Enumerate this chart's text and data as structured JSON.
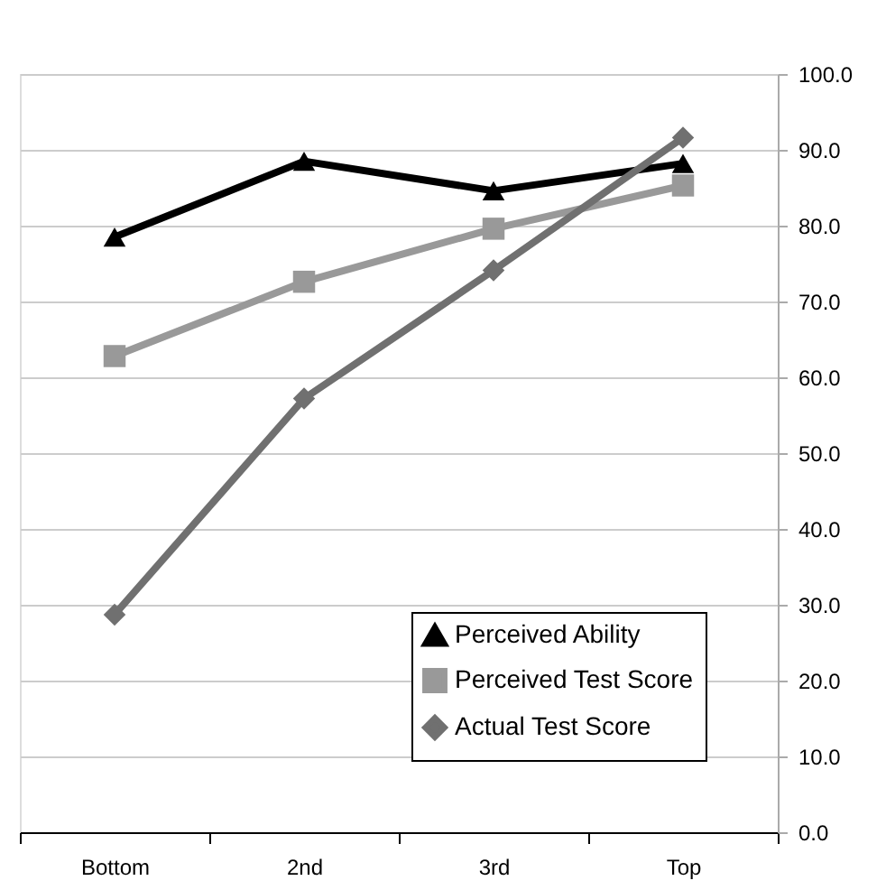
{
  "chart_data": {
    "type": "line",
    "categories": [
      "Bottom",
      "2nd",
      "3rd",
      "Top"
    ],
    "series": [
      {
        "name": "Perceived Ability",
        "color": "#000000",
        "marker": "triangle",
        "values": [
          78.5,
          88.5,
          84.6,
          88.2
        ]
      },
      {
        "name": "Perceived Test Score",
        "color": "#999999",
        "marker": "square",
        "values": [
          62.8,
          72.6,
          79.6,
          85.3
        ]
      },
      {
        "name": "Actual Test Score",
        "color": "#707070",
        "marker": "diamond",
        "values": [
          28.7,
          57.2,
          74.1,
          91.6
        ]
      }
    ],
    "ylim": [
      0,
      100
    ],
    "yticks": [
      {
        "value": 0,
        "label": "0.0"
      },
      {
        "value": 10,
        "label": "10.0"
      },
      {
        "value": 20,
        "label": "20.0"
      },
      {
        "value": 30,
        "label": "30.0"
      },
      {
        "value": 40,
        "label": "40.0"
      },
      {
        "value": 50,
        "label": "50.0"
      },
      {
        "value": 60,
        "label": "60.0"
      },
      {
        "value": 70,
        "label": "70.0"
      },
      {
        "value": 80,
        "label": "80.0"
      },
      {
        "value": 90,
        "label": "90.0"
      },
      {
        "value": 100,
        "label": "100.0"
      }
    ],
    "grid": "y",
    "legend": "bottom right",
    "line_style": "solid"
  }
}
